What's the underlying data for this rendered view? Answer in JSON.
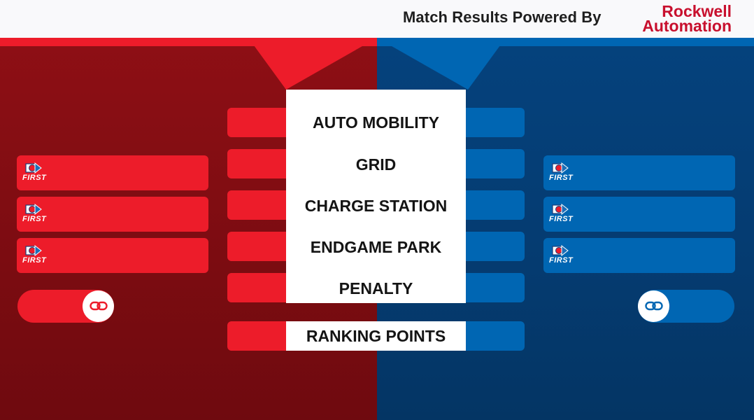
{
  "header": {
    "title": "Match Results Powered By",
    "brand_line1": "Rockwell",
    "brand_line2": "Automation"
  },
  "categories": [
    "AUTO MOBILITY",
    "GRID",
    "CHARGE STATION",
    "ENDGAME PARK",
    "PENALTY"
  ],
  "ranking_points_label": "RANKING POINTS",
  "logo_text": "FIRST",
  "icons": {
    "team_logo": "first-logo-icon",
    "alliance_link": "link-icon"
  },
  "colors": {
    "red_alliance": "#ed1c2a",
    "red_background": "#7b0c11",
    "blue_alliance": "#0066b3",
    "blue_background": "#053b70",
    "brand": "#c8102e"
  }
}
